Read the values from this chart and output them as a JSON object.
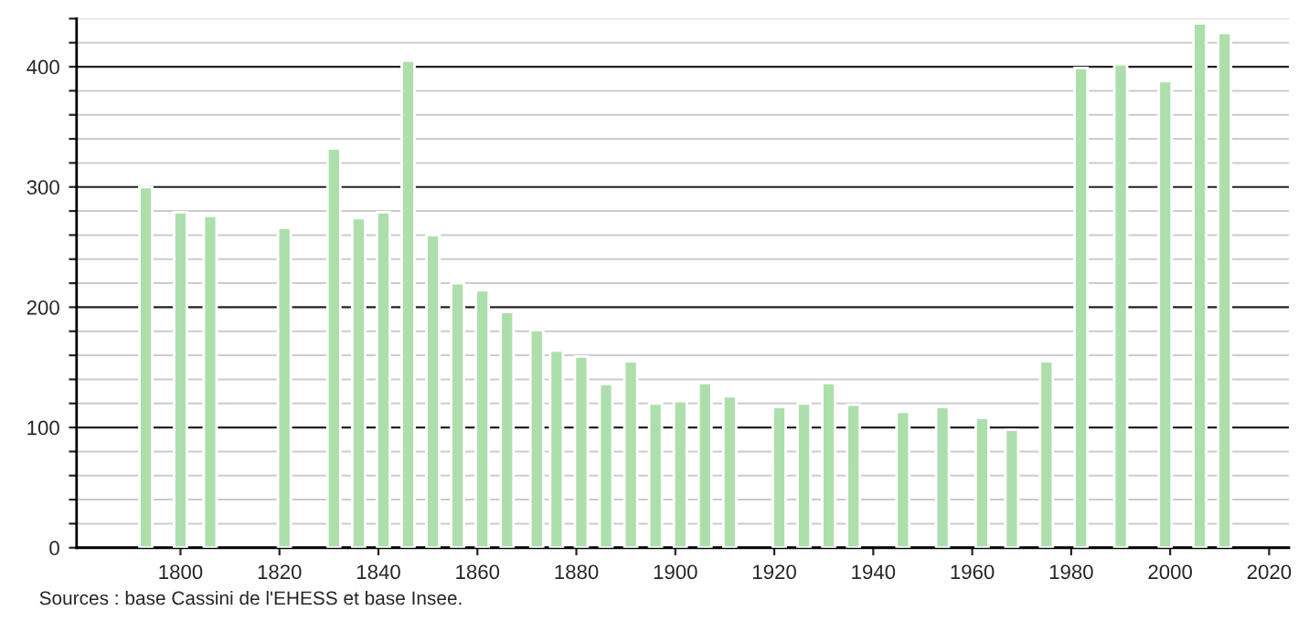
{
  "chart_data": {
    "type": "bar",
    "x": [
      1793,
      1800,
      1806,
      1821,
      1831,
      1836,
      1841,
      1846,
      1851,
      1856,
      1861,
      1866,
      1872,
      1876,
      1881,
      1886,
      1891,
      1896,
      1901,
      1906,
      1911,
      1921,
      1926,
      1931,
      1936,
      1946,
      1954,
      1962,
      1968,
      1975,
      1982,
      1990,
      1999,
      2006,
      2011
    ],
    "values": [
      300,
      279,
      276,
      266,
      332,
      274,
      279,
      405,
      260,
      220,
      214,
      196,
      181,
      164,
      159,
      136,
      155,
      120,
      122,
      137,
      126,
      117,
      120,
      137,
      119,
      113,
      117,
      108,
      98,
      155,
      399,
      402,
      388,
      436,
      428
    ],
    "color": "#addfad",
    "xlim": [
      1779,
      2024
    ],
    "xticks": [
      1800,
      1820,
      1840,
      1860,
      1880,
      1900,
      1920,
      1940,
      1960,
      1980,
      2000,
      2020
    ],
    "ylim": [
      0,
      440
    ],
    "yticks": [
      0,
      {
        "value": 20,
        "label": null
      },
      {
        "value": 40,
        "label": null
      },
      {
        "value": 60,
        "label": null
      },
      {
        "value": 80,
        "label": null
      },
      100,
      {
        "value": 120,
        "label": null
      },
      {
        "value": 140,
        "label": null
      },
      {
        "value": 160,
        "label": null
      },
      {
        "value": 180,
        "label": null
      },
      200,
      {
        "value": 220,
        "label": null
      },
      {
        "value": 240,
        "label": null
      },
      {
        "value": 260,
        "label": null
      },
      {
        "value": 280,
        "label": null
      },
      300,
      {
        "value": 320,
        "label": null
      },
      {
        "value": 340,
        "label": null
      },
      {
        "value": 360,
        "label": null
      },
      {
        "value": 380,
        "label": null
      },
      400,
      {
        "value": 420,
        "label": null
      },
      {
        "value": 440,
        "label": null
      }
    ],
    "grid": "y",
    "annotations": [
      "Sources : base Cassini de l'EHESS et base Insee."
    ]
  }
}
